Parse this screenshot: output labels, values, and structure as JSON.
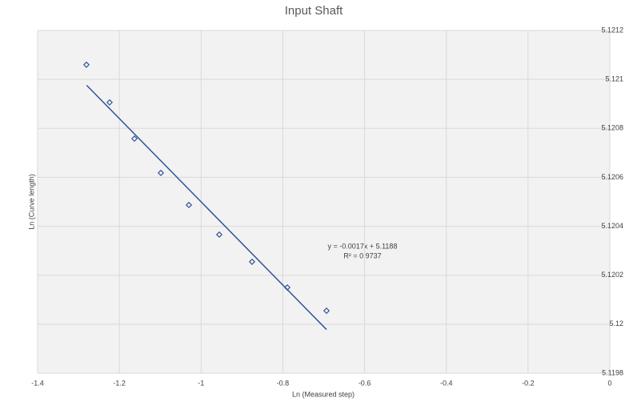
{
  "chart_data": {
    "type": "scatter",
    "title": "Input Shaft",
    "x_label": "Ln (Measured step)",
    "y_label": "Ln (Curve length)",
    "series": [
      {
        "name": "Input Shaft",
        "color": "#2f5597",
        "x": [
          -1.2806,
          -1.2238,
          -1.1631,
          -1.0985,
          -1.0299,
          -0.9555,
          -0.8753,
          -0.7891,
          -0.6931
        ],
        "values": [
          5.12106,
          5.120906,
          5.120758,
          5.120618,
          5.120487,
          5.120366,
          5.120255,
          5.12015,
          5.120055
        ]
      }
    ],
    "trendline": {
      "color": "#2f5597",
      "equation": "y = -0.0017x + 5.1188",
      "r_squared": "R² = 0.9737",
      "x": [
        -1.28,
        -0.693
      ],
      "values": [
        5.120976,
        5.119978
      ]
    },
    "xlim": [
      -1.4,
      0
    ],
    "xticks": [
      -1.4,
      -1.2,
      -1,
      -0.8,
      -0.6,
      -0.4,
      -0.2,
      0
    ],
    "ylim": [
      5.1198,
      5.1212
    ],
    "yticks": [
      5.1198,
      5.12,
      5.1202,
      5.1204,
      5.1206,
      5.1208,
      5.121,
      5.1212
    ],
    "grid": true
  }
}
